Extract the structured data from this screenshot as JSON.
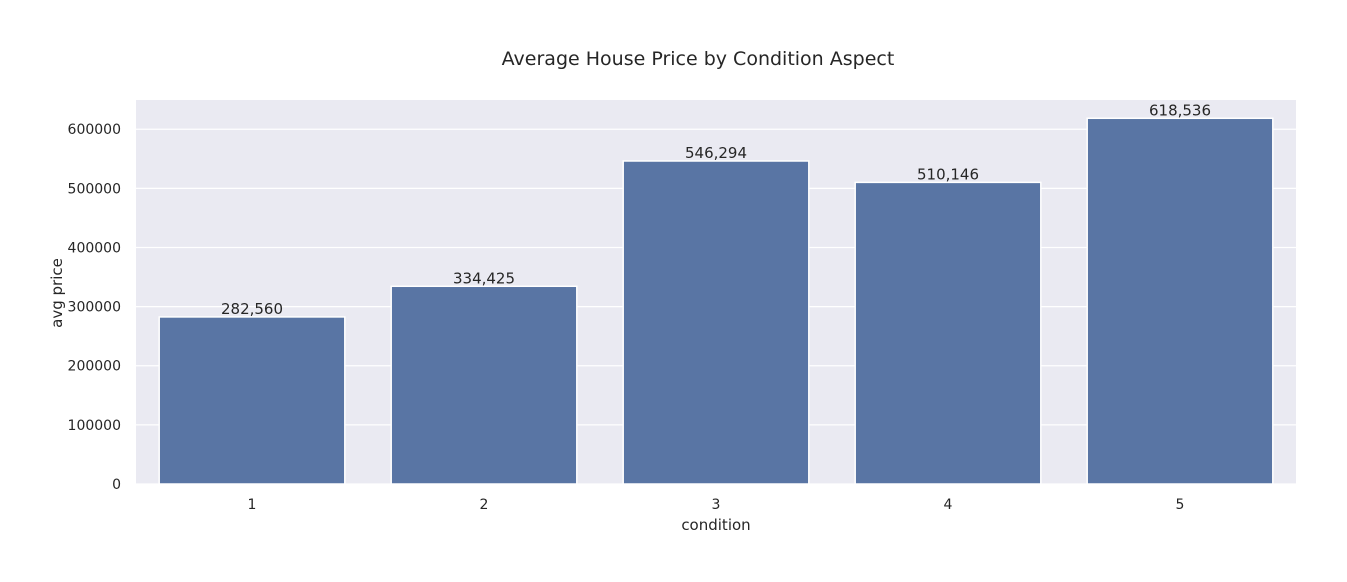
{
  "chart_data": {
    "type": "bar",
    "title": "Average House Price by Condition Aspect",
    "xlabel": "condition",
    "ylabel": "avg price",
    "categories": [
      "1",
      "2",
      "3",
      "4",
      "5"
    ],
    "values": [
      282560,
      334425,
      546294,
      510146,
      618536
    ],
    "value_labels": [
      "282,560",
      "334,425",
      "546,294",
      "510,146",
      "618,536"
    ],
    "yticks": [
      0,
      100000,
      200000,
      300000,
      400000,
      500000,
      600000
    ],
    "ytick_labels": [
      "0",
      "100000",
      "200000",
      "300000",
      "400000",
      "500000",
      "600000"
    ],
    "ylim": [
      0,
      649463
    ],
    "grid": true,
    "legend": "none",
    "colors": {
      "bar": "#5975a4",
      "plot_background": "#eaeaf2",
      "grid": "#ffffff",
      "text": "#262626"
    }
  }
}
